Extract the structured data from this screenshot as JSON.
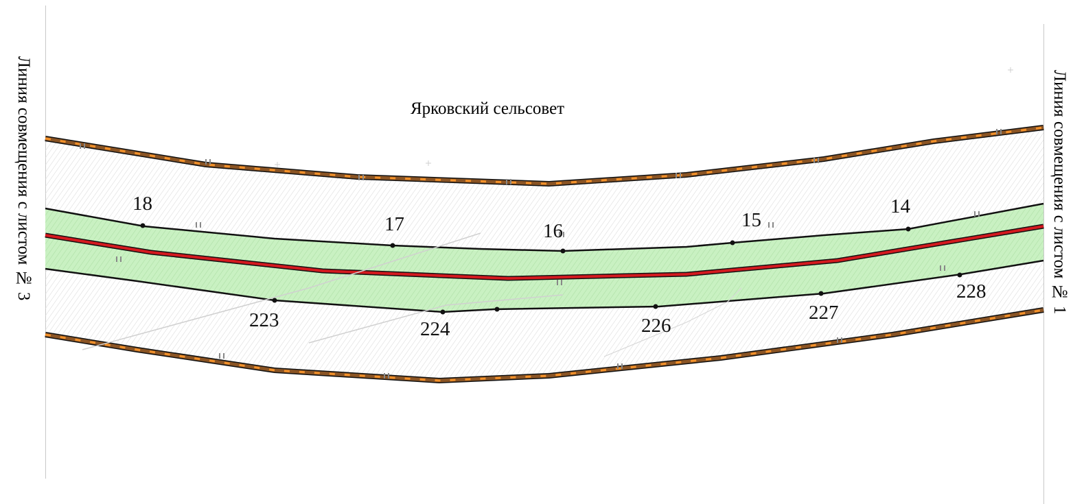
{
  "map": {
    "title": "Ярковский сельсовет",
    "left_match_line": "Линия совмещения с листом № 3",
    "right_match_line": "Линия совмещения с листом № 1",
    "colors": {
      "boundary_outer": "#7a4a1e",
      "boundary_dash": "#f08a1c",
      "corridor_fill": "#c8f2c0",
      "axis_line": "#c8151b",
      "edge_line": "#111111",
      "hatch": "#d8d8d8"
    },
    "points_upper": [
      "18",
      "17",
      "16",
      "15",
      "14"
    ],
    "points_lower": [
      "223",
      "224",
      "226",
      "227",
      "228"
    ]
  }
}
